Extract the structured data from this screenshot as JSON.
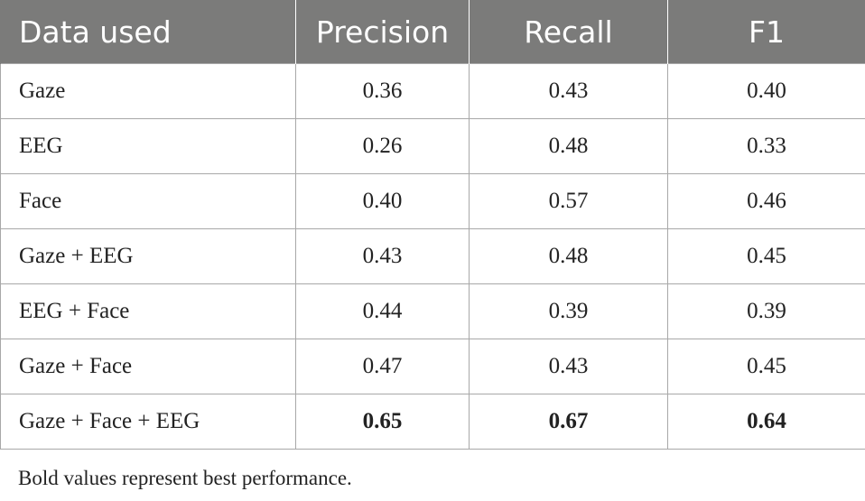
{
  "table": {
    "headers": [
      "Data used",
      "Precision",
      "Recall",
      "F1"
    ],
    "rows": [
      {
        "data_used": "Gaze",
        "precision": "0.36",
        "recall": "0.43",
        "f1": "0.40"
      },
      {
        "data_used": "EEG",
        "precision": "0.26",
        "recall": "0.48",
        "f1": "0.33"
      },
      {
        "data_used": "Face",
        "precision": "0.40",
        "recall": "0.57",
        "f1": "0.46"
      },
      {
        "data_used": "Gaze + EEG",
        "precision": "0.43",
        "recall": "0.48",
        "f1": "0.45"
      },
      {
        "data_used": "EEG + Face",
        "precision": "0.44",
        "recall": "0.39",
        "f1": "0.39"
      },
      {
        "data_used": "Gaze + Face",
        "precision": "0.47",
        "recall": "0.43",
        "f1": "0.45"
      },
      {
        "data_used": "Gaze + Face + EEG",
        "precision": "0.65",
        "recall": "0.67",
        "f1": "0.64",
        "bold": true
      }
    ]
  },
  "footnote": "Bold values represent best performance.",
  "colors": {
    "header_background": "#7b7b7a",
    "header_text": "#ffffff",
    "border": "#a8a8a8"
  }
}
